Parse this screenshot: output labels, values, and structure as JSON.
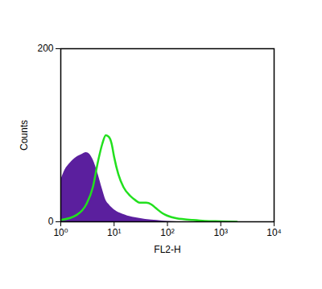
{
  "chart_data": {
    "type": "line",
    "x_label": "FL2-H",
    "y_label": "Counts",
    "log": "x",
    "xlim": [
      1,
      10000
    ],
    "xticks": [
      {
        "value": 1,
        "label": "10⁰"
      },
      {
        "value": 10,
        "label": "10¹"
      },
      {
        "value": 100,
        "label": "10²"
      },
      {
        "value": 1000,
        "label": "10³"
      },
      {
        "value": 10000,
        "label": "10⁴"
      }
    ],
    "ylim": [
      0,
      200
    ],
    "yticks": [
      0,
      200
    ],
    "series": [
      {
        "type": "area",
        "color": "#5b1f9e",
        "x": [
          1,
          1.2,
          1.5,
          2,
          2.5,
          3,
          3.5,
          4,
          5,
          6,
          7,
          8,
          10,
          13,
          16,
          20,
          30,
          50,
          80,
          100,
          150
        ],
        "values": [
          48,
          60,
          68,
          75,
          78,
          80,
          78,
          72,
          55,
          38,
          25,
          20,
          14,
          10,
          8,
          6,
          4,
          2,
          1,
          0.5,
          0
        ]
      },
      {
        "type": "line",
        "color": "#22e01e",
        "x": [
          1,
          2,
          3,
          4,
          5,
          6,
          7,
          8,
          9,
          10,
          12,
          15,
          20,
          25,
          30,
          40,
          50,
          60,
          80,
          100,
          150,
          200,
          300,
          500,
          1000,
          2000
        ],
        "values": [
          2,
          8,
          20,
          40,
          70,
          90,
          100,
          98,
          90,
          75,
          55,
          40,
          30,
          25,
          22,
          22,
          20,
          16,
          10,
          7,
          4,
          3,
          2,
          1,
          0.5,
          0
        ]
      }
    ]
  }
}
